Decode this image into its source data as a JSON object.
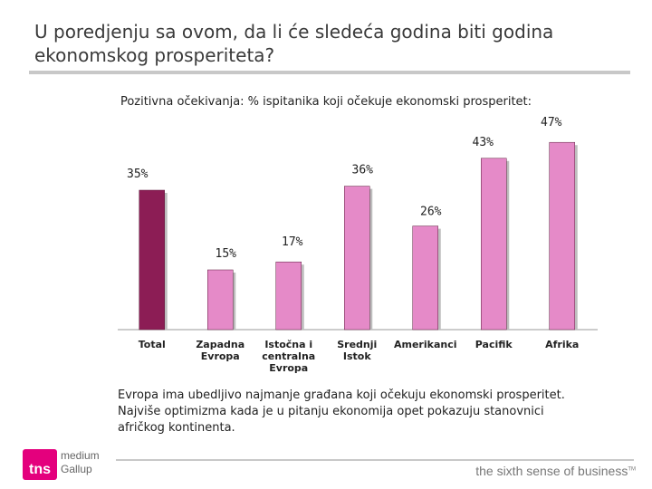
{
  "slide": {
    "title_line1": "U poredjenju sa ovom, da li će sledeća godina biti godina",
    "title_line2": "ekonomskog prosperiteta?",
    "caption_line1": "Evropa ima ubedljivo najmanje građana koji očekuju ekonomski prosperitet.",
    "caption_line2": "Najviše optimizma kada je u pitanju ekonomija opet pokazuju stanovnici",
    "caption_line3": "afričkog kontinenta."
  },
  "footer": {
    "logo_mark": "tns",
    "logo_line1": "medium",
    "logo_line2": "Gallup",
    "tagline": "the sixth sense of business",
    "tm": "TM"
  },
  "colors": {
    "total_bar": "#8c1d55",
    "region_bar": "#e58ac8",
    "title_rule": "#c8c8c8",
    "brand": "#e4007d"
  },
  "chart_data": {
    "type": "bar",
    "title": "Pozitivna očekivanja: % ispitanika koji očekuje ekonomski prosperitet:",
    "categories": [
      [
        "Total"
      ],
      [
        "Zapadna",
        "Evropa"
      ],
      [
        "Istočna i",
        "centralna",
        "Evropa"
      ],
      [
        "Srednji",
        "Istok"
      ],
      [
        "Amerikanci"
      ],
      [
        "Pacifik"
      ],
      [
        "Afrika"
      ]
    ],
    "values": [
      35,
      15,
      17,
      36,
      26,
      43,
      47
    ],
    "labels": [
      "35%",
      "15%",
      "17%",
      "36%",
      "26%",
      "43%",
      "47%"
    ],
    "ylim": [
      0,
      50
    ],
    "xlabel": "",
    "ylabel": "",
    "grid": false,
    "legend": "none"
  }
}
